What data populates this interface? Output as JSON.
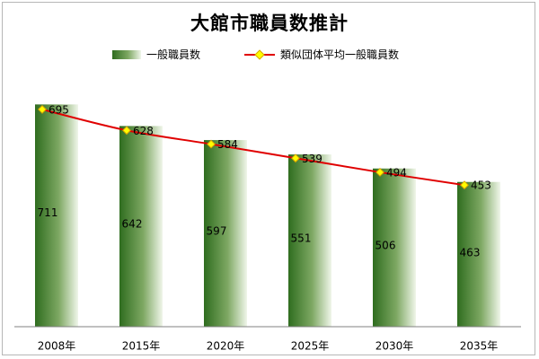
{
  "chart_data": {
    "type": "bar",
    "title": "大館市職員数推計",
    "categories": [
      "2008年",
      "2015年",
      "2020年",
      "2025年",
      "2030年",
      "2035年"
    ],
    "series": [
      {
        "name": "一般職員数",
        "kind": "bar",
        "values": [
          711,
          642,
          597,
          551,
          506,
          463
        ]
      },
      {
        "name": "類似団体平均一般職員数",
        "kind": "line",
        "values": [
          695,
          628,
          584,
          539,
          494,
          453
        ]
      }
    ],
    "xlabel": "",
    "ylabel": "",
    "ylim": [
      0,
      800
    ],
    "grid": false,
    "legend": "top",
    "colors": {
      "bar_dark": "#2f6d1f",
      "bar_light": "#f0f6ea",
      "line": "#e00000",
      "marker": "#ffff00"
    }
  }
}
